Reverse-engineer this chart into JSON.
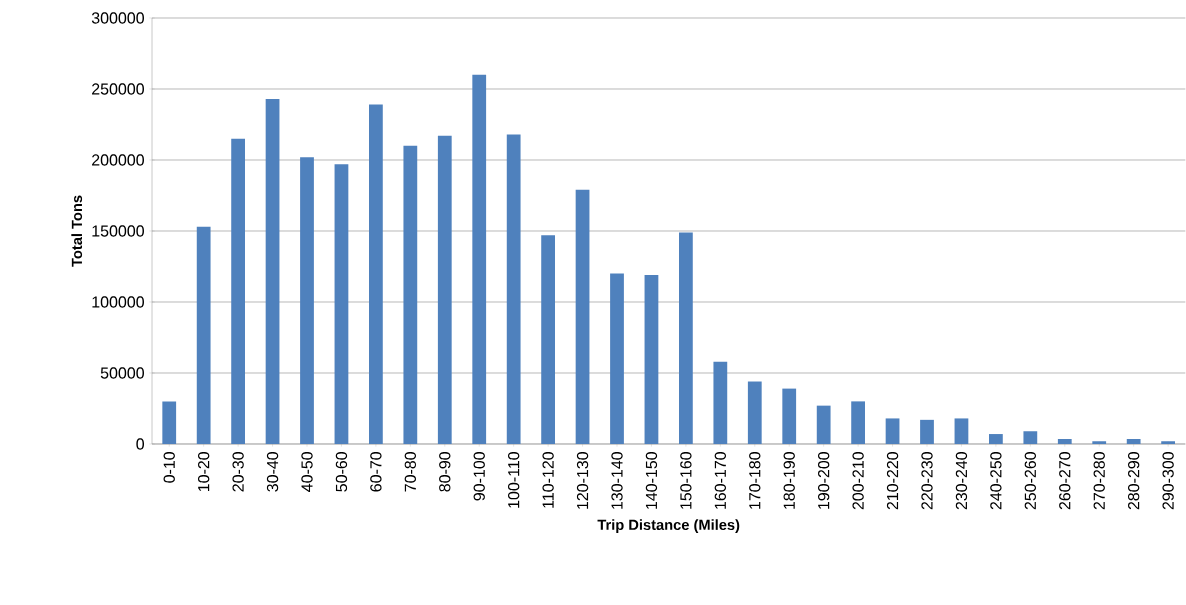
{
  "chart_data": {
    "type": "bar",
    "xlabel": "Trip Distance (Miles)",
    "ylabel": "Total Tons",
    "categories": [
      "0-10",
      "10-20",
      "20-30",
      "30-40",
      "40-50",
      "50-60",
      "60-70",
      "70-80",
      "80-90",
      "90-100",
      "100-110",
      "110-120",
      "120-130",
      "130-140",
      "140-150",
      "150-160",
      "160-170",
      "170-180",
      "180-190",
      "190-200",
      "200-210",
      "210-220",
      "220-230",
      "230-240",
      "240-250",
      "250-260",
      "260-270",
      "270-280",
      "280-290",
      "290-300"
    ],
    "values": [
      30000,
      153000,
      215000,
      243000,
      202000,
      197000,
      239000,
      210000,
      217000,
      260000,
      218000,
      147000,
      179000,
      120000,
      119000,
      149000,
      58000,
      44000,
      39000,
      27000,
      30000,
      18000,
      17000,
      18000,
      7000,
      9000,
      3500,
      2000,
      3500,
      2000
    ],
    "color": "#4f81bd",
    "ylim": [
      0,
      300000
    ],
    "yticks": [
      0,
      50000,
      100000,
      150000,
      200000,
      250000,
      300000
    ],
    "grid": "y"
  }
}
